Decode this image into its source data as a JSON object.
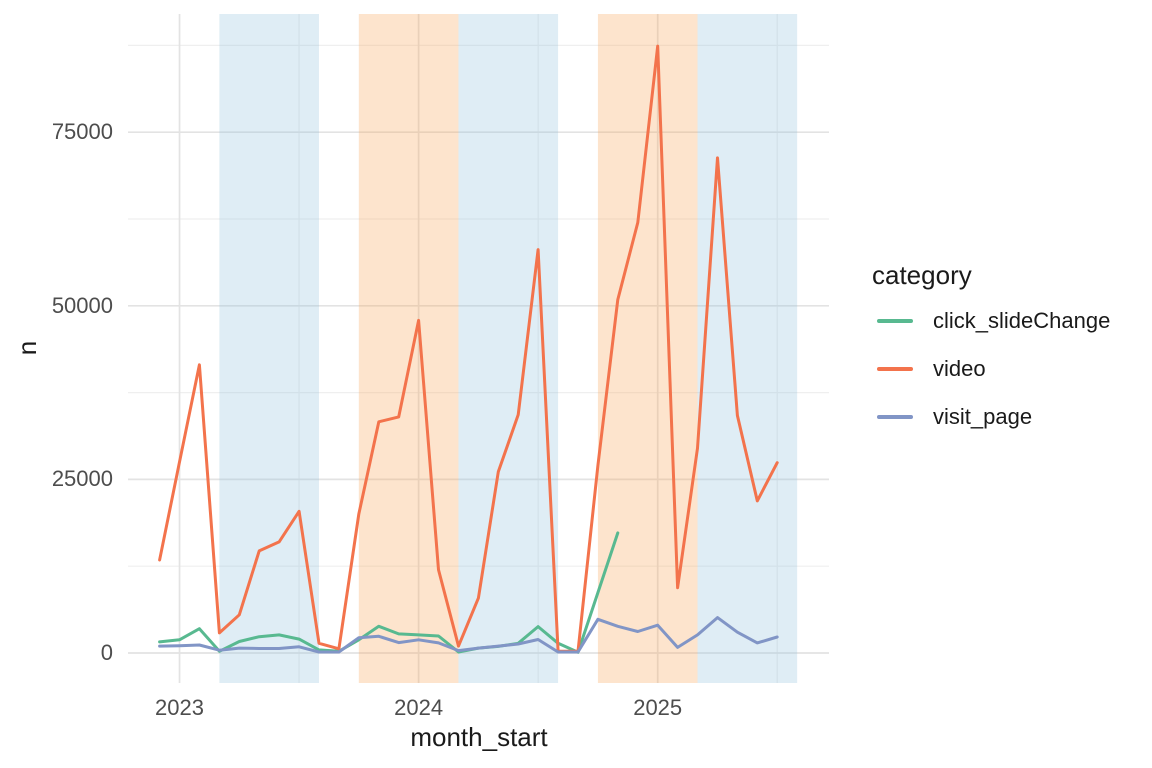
{
  "figure": {
    "xlabel": "month_start",
    "ylabel": "n",
    "legend_title": "category"
  },
  "chart_data": {
    "type": "line",
    "title": "",
    "xlabel": "month_start",
    "ylabel": "n",
    "legend_position": "right",
    "grid": true,
    "x_tick_years": [
      "2023",
      "2024",
      "2025"
    ],
    "y_ticks": [
      0,
      25000,
      50000,
      75000
    ],
    "ylim": [
      -4300,
      92100
    ],
    "x": [
      "2022-12",
      "2023-01",
      "2023-02",
      "2023-03",
      "2023-04",
      "2023-05",
      "2023-06",
      "2023-07",
      "2023-08",
      "2023-09",
      "2023-10",
      "2023-11",
      "2023-12",
      "2024-01",
      "2024-02",
      "2024-03",
      "2024-04",
      "2024-05",
      "2024-06",
      "2024-07",
      "2024-08",
      "2024-09",
      "2024-10",
      "2024-11",
      "2024-12",
      "2025-01",
      "2025-02",
      "2025-03",
      "2025-04",
      "2025-05",
      "2025-06",
      "2025-07"
    ],
    "series": [
      {
        "name": "click_slideChange",
        "color": "#58B990",
        "values": [
          1600,
          1900,
          3500,
          250,
          1650,
          2350,
          2600,
          2000,
          450,
          250,
          1900,
          3850,
          2750,
          2600,
          2450,
          150,
          700,
          950,
          1400,
          3800,
          1400,
          100,
          8700,
          17300,
          null,
          null,
          null,
          null,
          null,
          null,
          null,
          null
        ]
      },
      {
        "name": "video",
        "color": "#F3734C",
        "values": [
          13400,
          27500,
          41500,
          2900,
          5500,
          14700,
          16000,
          20400,
          1400,
          600,
          20000,
          33300,
          34000,
          47900,
          12000,
          1000,
          7900,
          26100,
          34300,
          58100,
          250,
          250,
          27000,
          50900,
          62000,
          87400,
          9400,
          29500,
          71300,
          34200,
          21900,
          27400
        ]
      },
      {
        "name": "visit_page",
        "color": "#8195C6",
        "values": [
          1000,
          1050,
          1150,
          400,
          700,
          650,
          650,
          900,
          150,
          150,
          2200,
          2400,
          1500,
          1900,
          1450,
          350,
          700,
          1000,
          1300,
          1950,
          150,
          150,
          4850,
          3850,
          3100,
          4000,
          800,
          2600,
          5100,
          3000,
          1450,
          2300
        ]
      }
    ],
    "draw_order": [
      "click_slideChange",
      "video",
      "visit_page"
    ],
    "bands": [
      {
        "from": "2023-03",
        "to": "2023-08",
        "type": "blue"
      },
      {
        "from": "2023-10",
        "to": "2024-03",
        "type": "orange"
      },
      {
        "from": "2024-03",
        "to": "2024-08",
        "type": "blue"
      },
      {
        "from": "2024-10",
        "to": "2025-03",
        "type": "orange"
      },
      {
        "from": "2025-03",
        "to": "2025-08",
        "type": "blue"
      }
    ],
    "colors": {
      "band_blue": "rgba(141,189,220,0.28)",
      "band_orange": "rgba(250,166,91,0.30)",
      "grid_major": "#E3E3E3",
      "grid_minor": "#EFEFEF",
      "tick_text": "#4d4d4d",
      "title_text": "#1a1a1a"
    }
  }
}
